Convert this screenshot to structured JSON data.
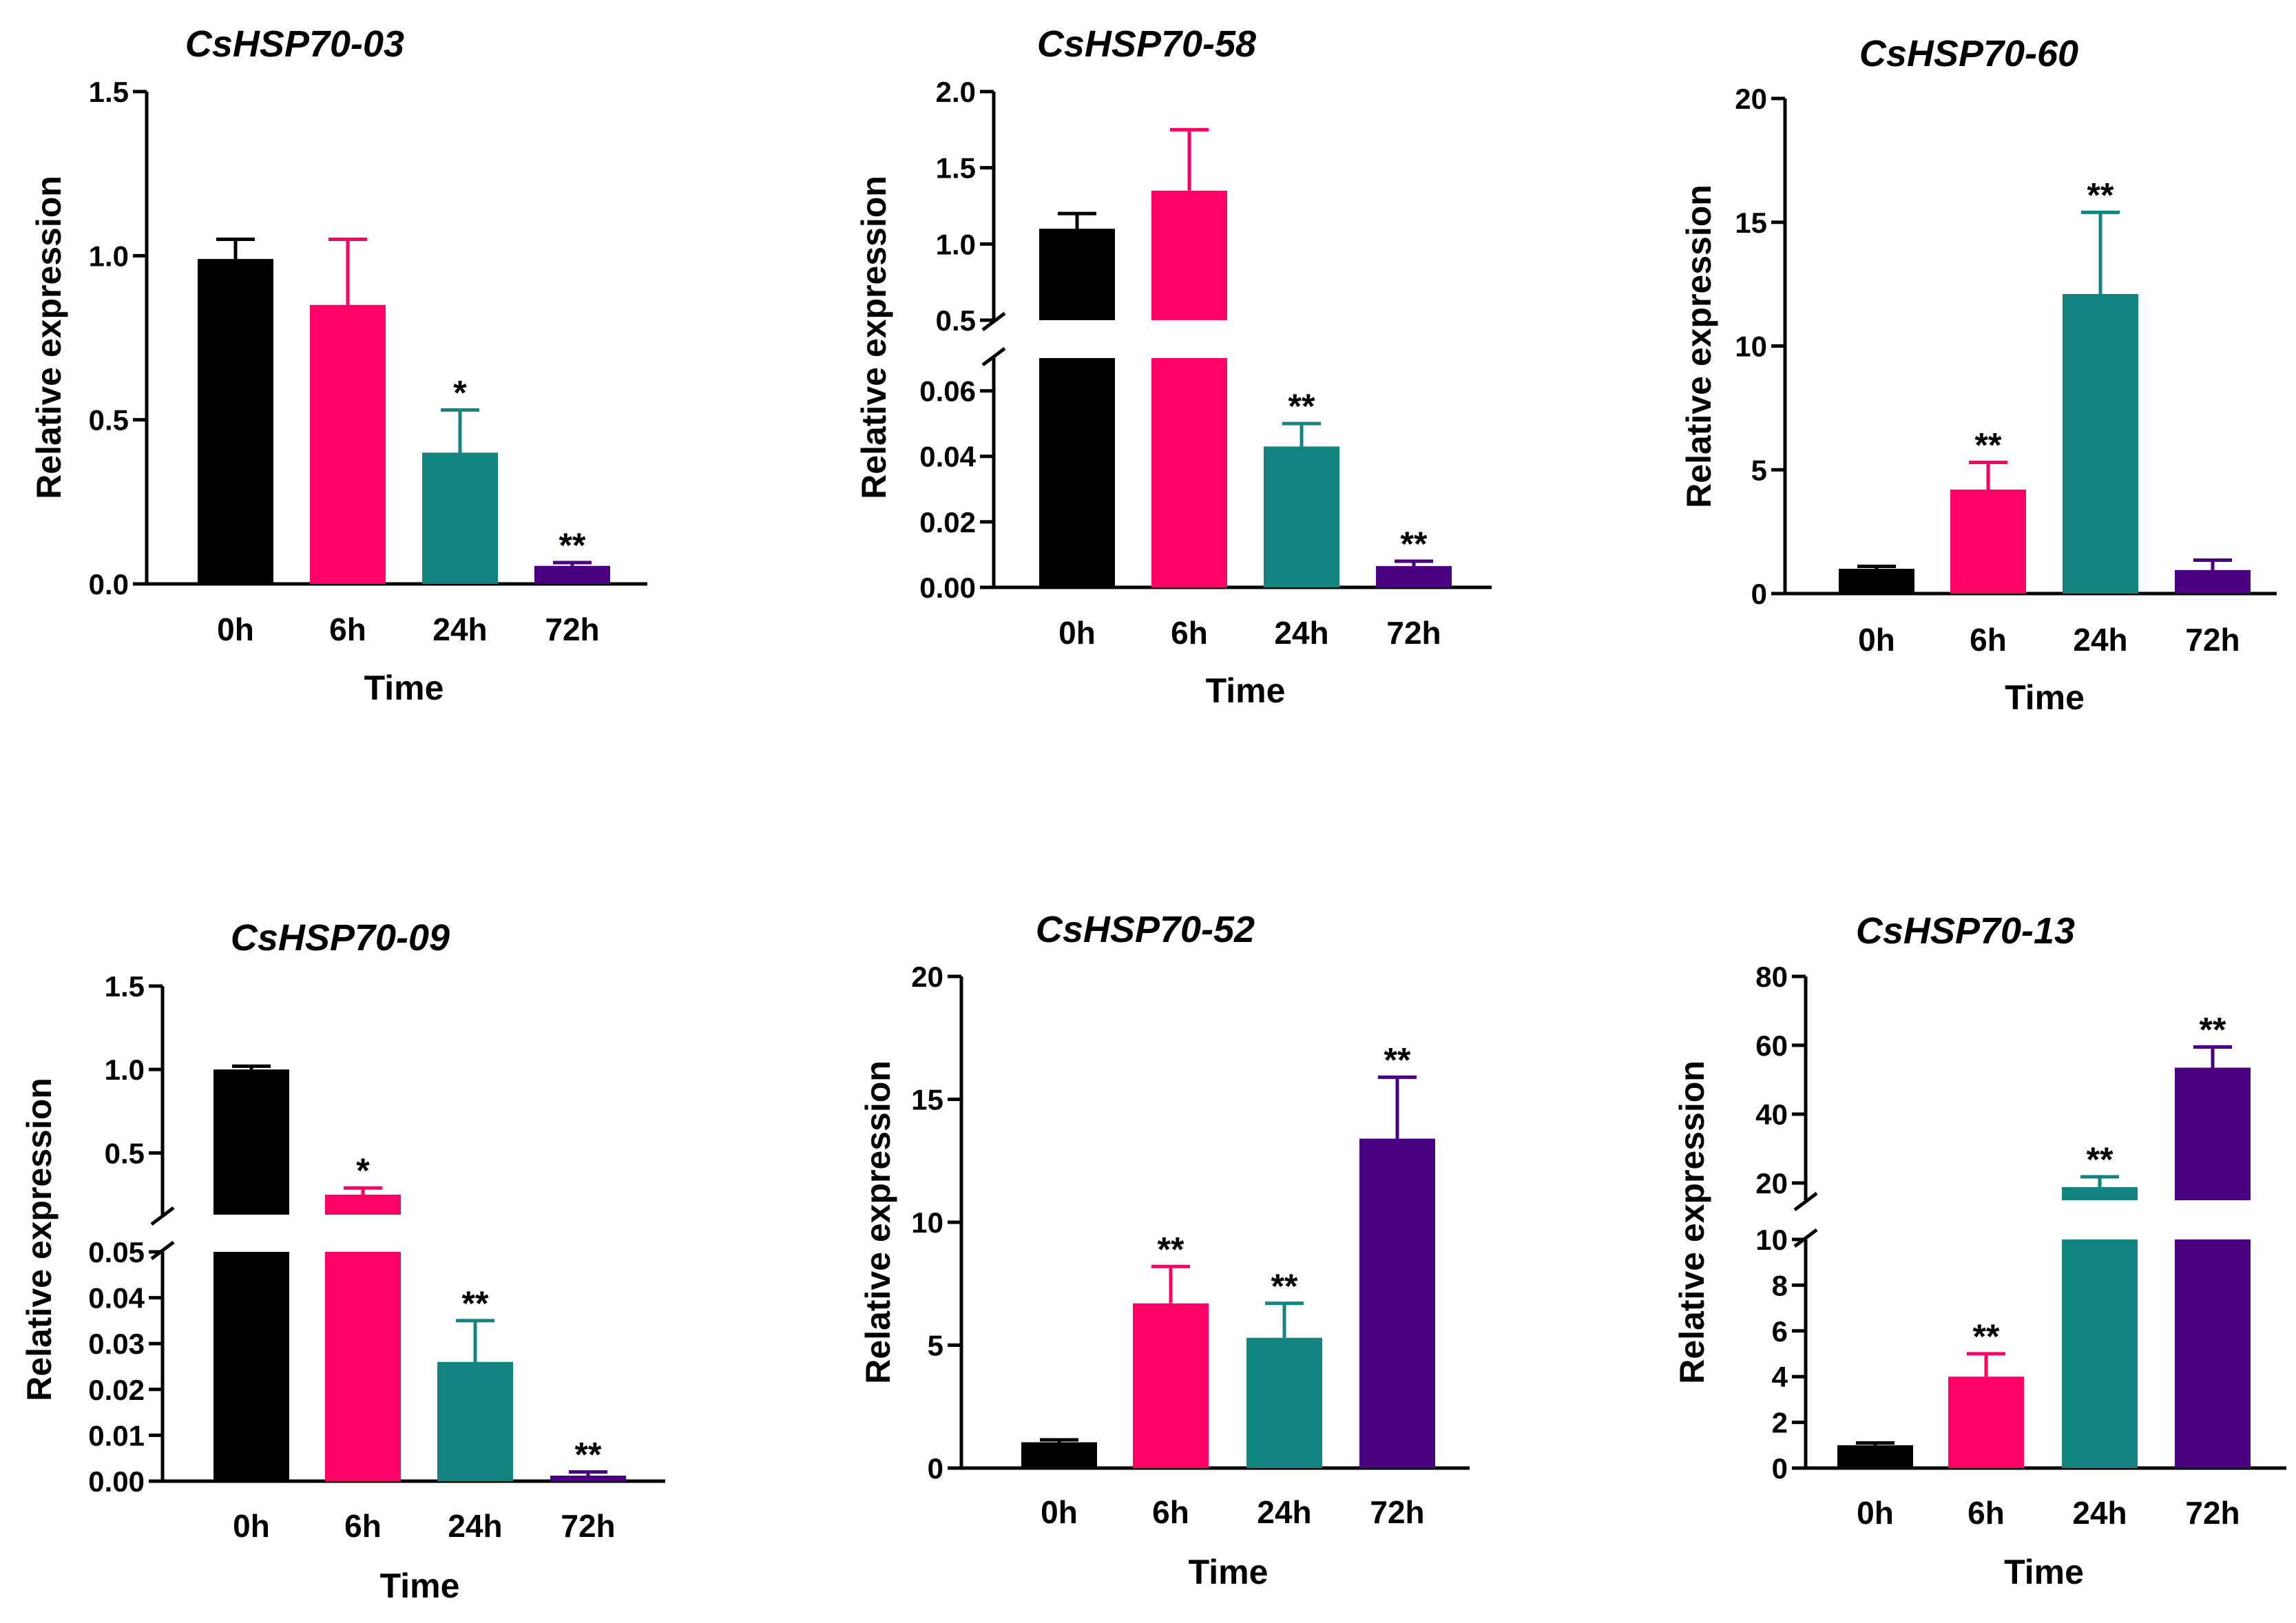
{
  "colors": {
    "0h": "#000000",
    "6h": "#ff0066",
    "24h": "#148480",
    "72h": "#4b0082"
  },
  "chart_data": [
    {
      "type": "bar",
      "title": "CsHSP70-03",
      "xlabel": "Time",
      "ylabel": "Relative expression",
      "categories": [
        "0h",
        "6h",
        "24h",
        "72h"
      ],
      "values": [
        0.99,
        0.85,
        0.4,
        0.055
      ],
      "errors": [
        0.06,
        0.2,
        0.13,
        0.01
      ],
      "significance": [
        "",
        "",
        "*",
        "**"
      ],
      "ylim": [
        0,
        1.5
      ],
      "ticks": [
        0.0,
        0.5,
        1.0,
        1.5
      ],
      "tick_labels": [
        "0.0",
        "0.5",
        "1.0",
        "1.5"
      ]
    },
    {
      "type": "bar",
      "title": "CsHSP70-58",
      "xlabel": "Time",
      "ylabel": "Relative expression",
      "categories": [
        "0h",
        "6h",
        "24h",
        "72h"
      ],
      "values": [
        1.1,
        1.35,
        0.043,
        0.0065
      ],
      "errors": [
        0.1,
        0.4,
        0.007,
        0.0015
      ],
      "significance": [
        "",
        "",
        "**",
        "**"
      ],
      "broken_axis": {
        "lower": [
          0,
          0.07
        ],
        "upper": [
          0.5,
          2.0
        ]
      },
      "ticks": [
        0.0,
        0.02,
        0.04,
        0.06,
        0.5,
        1.0,
        1.5,
        2.0
      ],
      "tick_labels": [
        "0.00",
        "0.02",
        "0.04",
        "0.06",
        "0.5",
        "1.0",
        "1.5",
        "2.0"
      ]
    },
    {
      "type": "bar",
      "title": "CsHSP70-60",
      "xlabel": "Time",
      "ylabel": "Relative expression",
      "categories": [
        "0h",
        "6h",
        "24h",
        "72h"
      ],
      "values": [
        1.0,
        4.2,
        12.1,
        0.95
      ],
      "errors": [
        0.1,
        1.1,
        3.3,
        0.4
      ],
      "significance": [
        "",
        "**",
        "**",
        ""
      ],
      "ylim": [
        0,
        20
      ],
      "ticks": [
        0,
        5,
        10,
        15,
        20
      ],
      "tick_labels": [
        "0",
        "5",
        "10",
        "15",
        "20"
      ]
    },
    {
      "type": "bar",
      "title": "CsHSP70-09",
      "xlabel": "Time",
      "ylabel": "Relative expression",
      "categories": [
        "0h",
        "6h",
        "24h",
        "72h"
      ],
      "values": [
        1.0,
        0.25,
        0.026,
        0.0012
      ],
      "errors": [
        0.02,
        0.04,
        0.009,
        0.0008
      ],
      "significance": [
        "",
        "*",
        "**",
        "**"
      ],
      "broken_axis": {
        "lower": [
          0,
          0.05
        ],
        "upper": [
          0.13,
          1.5
        ]
      },
      "ticks": [
        0.0,
        0.01,
        0.02,
        0.03,
        0.04,
        0.05,
        0.5,
        1.0,
        1.5
      ],
      "tick_labels": [
        "0.00",
        "0.01",
        "0.02",
        "0.03",
        "0.04",
        "0.05",
        "0.5",
        "1.0",
        "1.5"
      ]
    },
    {
      "type": "bar",
      "title": "CsHSP70-52",
      "xlabel": "Time",
      "ylabel": "Relative expression",
      "categories": [
        "0h",
        "6h",
        "24h",
        "72h"
      ],
      "values": [
        1.05,
        6.7,
        5.3,
        13.4
      ],
      "errors": [
        0.1,
        1.5,
        1.4,
        2.5
      ],
      "significance": [
        "",
        "**",
        "**",
        "**"
      ],
      "ylim": [
        0,
        20
      ],
      "ticks": [
        0,
        5,
        10,
        15,
        20
      ],
      "tick_labels": [
        "0",
        "5",
        "10",
        "15",
        "20"
      ]
    },
    {
      "type": "bar",
      "title": "CsHSP70-13",
      "xlabel": "Time",
      "ylabel": "Relative expression",
      "categories": [
        "0h",
        "6h",
        "24h",
        "72h"
      ],
      "values": [
        1.0,
        4.0,
        18.8,
        53.5
      ],
      "errors": [
        0.1,
        1.0,
        3.0,
        6.0
      ],
      "significance": [
        "",
        "**",
        "**",
        "**"
      ],
      "broken_axis": {
        "lower": [
          0,
          10
        ],
        "upper": [
          15,
          80
        ]
      },
      "ticks": [
        0,
        2,
        4,
        6,
        8,
        10,
        20,
        40,
        60,
        80
      ],
      "tick_labels": [
        "0",
        "2",
        "4",
        "6",
        "8",
        "10",
        "20",
        "40",
        "60",
        "80"
      ]
    }
  ]
}
